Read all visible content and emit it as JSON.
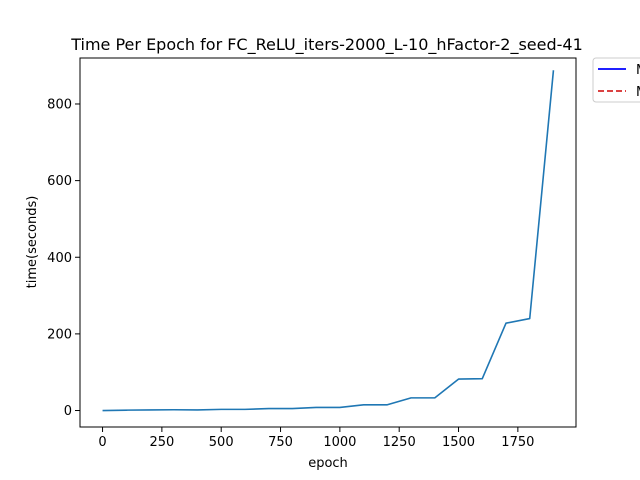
{
  "chart_data": {
    "type": "line",
    "title": "Time Per Epoch for FC_ReLU_iters-2000_L-10_hFactor-2_seed-41",
    "xlabel": "epoch",
    "ylabel": "time(seconds)",
    "xlim": [
      -95,
      1995
    ],
    "ylim": [
      -43,
      920
    ],
    "xticks": [
      0,
      250,
      500,
      750,
      1000,
      1250,
      1500,
      1750
    ],
    "yticks": [
      0,
      200,
      400,
      600,
      800
    ],
    "grid": false,
    "legend_placement": "outside-top-right",
    "legend": [
      {
        "label": "M",
        "color": "#0000ff",
        "style": "solid"
      },
      {
        "label": "M",
        "color": "#d62728",
        "style": "dashed"
      }
    ],
    "series": [
      {
        "color": "#1f77b4",
        "x": [
          0,
          100,
          200,
          300,
          400,
          500,
          600,
          700,
          800,
          900,
          1000,
          1100,
          1200,
          1300,
          1400,
          1500,
          1600,
          1700,
          1800,
          1900
        ],
        "y": [
          0,
          1,
          1.5,
          2,
          1.5,
          3,
          3,
          5,
          5,
          8,
          8,
          15,
          15,
          33,
          33,
          82,
          83,
          228,
          240,
          888
        ]
      }
    ]
  }
}
